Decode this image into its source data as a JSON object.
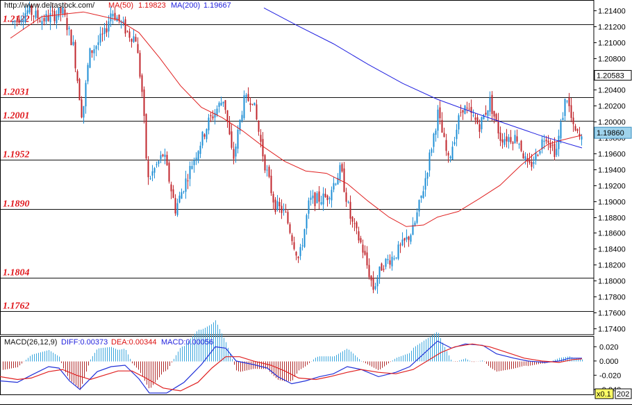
{
  "header": {
    "source": "http://www.deltastock.com/",
    "ma50_label": "MA(50)",
    "ma50_value": "1.19823",
    "ma200_label": "MA(200)",
    "ma200_value": "1.19667"
  },
  "macd_header": {
    "title": "MACD(26,12,9)",
    "diff": "DIFF:0.00373",
    "dea": "DEA:0.00344",
    "macd": "MACD:0.00056"
  },
  "colors": {
    "up": "#1f8fd6",
    "down": "#c0262c",
    "ma50": "#e02020",
    "ma200": "#2020e0",
    "level_text": "#e0191e",
    "price_box": "#9fd3ec"
  },
  "chart_data": [
    {
      "type": "candlestick",
      "yaxis": {
        "ticks": [
          "1.21400",
          "1.21200",
          "1.21000",
          "1.20800",
          "1.20600",
          "1.20400",
          "1.20200",
          "1.20000",
          "1.19800",
          "1.19600",
          "1.19400",
          "1.19200",
          "1.19000",
          "1.18800",
          "1.18600",
          "1.18400",
          "1.18200",
          "1.18000",
          "1.17800",
          "1.17600",
          "1.17400"
        ],
        "range": [
          1.1732,
          1.2153
        ]
      },
      "levels": [
        "1.2122",
        "1.2031",
        "1.2001",
        "1.1952",
        "1.1890",
        "1.1804",
        "1.1762"
      ],
      "current_price": "1.19860",
      "marker_price": "1.20583",
      "ma50_points": [
        [
          15,
          1.2105
        ],
        [
          60,
          1.2132
        ],
        [
          120,
          1.2138
        ],
        [
          170,
          1.2128
        ],
        [
          200,
          1.2112
        ],
        [
          230,
          1.208
        ],
        [
          260,
          1.2045
        ],
        [
          290,
          1.2018
        ],
        [
          320,
          1.2005
        ],
        [
          350,
          1.1988
        ],
        [
          380,
          1.1968
        ],
        [
          410,
          1.195
        ],
        [
          440,
          1.1938
        ],
        [
          470,
          1.1935
        ],
        [
          500,
          1.1922
        ],
        [
          530,
          1.19
        ],
        [
          560,
          1.188
        ],
        [
          585,
          1.1868
        ],
        [
          610,
          1.187
        ],
        [
          630,
          1.188
        ],
        [
          660,
          1.1887
        ],
        [
          690,
          1.1903
        ],
        [
          720,
          1.192
        ],
        [
          750,
          1.1945
        ],
        [
          770,
          1.196
        ],
        [
          790,
          1.1972
        ],
        [
          810,
          1.1977
        ],
        [
          838,
          1.1983
        ]
      ],
      "ma200_points": [
        [
          380,
          1.2143
        ],
        [
          430,
          1.212
        ],
        [
          480,
          1.2098
        ],
        [
          530,
          1.2072
        ],
        [
          580,
          1.2048
        ],
        [
          630,
          1.2028
        ],
        [
          680,
          1.2012
        ],
        [
          730,
          1.1997
        ],
        [
          780,
          1.1982
        ],
        [
          838,
          1.1967
        ]
      ],
      "price_path": [
        [
          18,
          1.2125
        ],
        [
          40,
          1.214
        ],
        [
          60,
          1.2128
        ],
        [
          90,
          1.2138
        ],
        [
          105,
          1.2095
        ],
        [
          118,
          1.2005
        ],
        [
          128,
          1.2085
        ],
        [
          150,
          1.211
        ],
        [
          160,
          1.214
        ],
        [
          185,
          1.211
        ],
        [
          195,
          1.2105
        ],
        [
          205,
          1.203
        ],
        [
          212,
          1.1925
        ],
        [
          235,
          1.196
        ],
        [
          252,
          1.189
        ],
        [
          275,
          1.1945
        ],
        [
          300,
          1.2
        ],
        [
          322,
          1.203
        ],
        [
          335,
          1.195
        ],
        [
          350,
          1.2025
        ],
        [
          363,
          1.203
        ],
        [
          380,
          1.195
        ],
        [
          395,
          1.1895
        ],
        [
          410,
          1.1885
        ],
        [
          430,
          1.1825
        ],
        [
          445,
          1.19
        ],
        [
          470,
          1.1905
        ],
        [
          490,
          1.194
        ],
        [
          505,
          1.1875
        ],
        [
          520,
          1.1845
        ],
        [
          537,
          1.179
        ],
        [
          550,
          1.182
        ],
        [
          565,
          1.183
        ],
        [
          580,
          1.1845
        ],
        [
          595,
          1.1865
        ],
        [
          610,
          1.192
        ],
        [
          630,
          1.201
        ],
        [
          645,
          1.195
        ],
        [
          665,
          1.202
        ],
        [
          690,
          1.1995
        ],
        [
          705,
          1.2025
        ],
        [
          720,
          1.198
        ],
        [
          745,
          1.198
        ],
        [
          760,
          1.194
        ],
        [
          770,
          1.1955
        ],
        [
          785,
          1.1985
        ],
        [
          800,
          1.196
        ],
        [
          815,
          1.2035
        ],
        [
          825,
          1.199
        ],
        [
          838,
          1.1975
        ]
      ]
    },
    {
      "type": "macd",
      "yaxis": {
        "ticks": [
          "0.020",
          "0.000",
          "-0.020",
          "-0.040"
        ],
        "range": [
          -0.047,
          0.035
        ]
      },
      "zoom_label": "x0.1",
      "extra_label": "202",
      "diff_points": [
        [
          0,
          -0.028
        ],
        [
          25,
          -0.03
        ],
        [
          45,
          -0.02
        ],
        [
          70,
          -0.008
        ],
        [
          85,
          -0.01
        ],
        [
          100,
          -0.028
        ],
        [
          115,
          -0.04
        ],
        [
          125,
          -0.03
        ],
        [
          140,
          -0.015
        ],
        [
          160,
          -0.008
        ],
        [
          180,
          -0.006
        ],
        [
          200,
          -0.025
        ],
        [
          215,
          -0.045
        ],
        [
          240,
          -0.045
        ],
        [
          265,
          -0.03
        ],
        [
          290,
          -0.005
        ],
        [
          310,
          0.02
        ],
        [
          325,
          0.018
        ],
        [
          340,
          0.0
        ],
        [
          365,
          -0.005
        ],
        [
          385,
          -0.01
        ],
        [
          400,
          -0.022
        ],
        [
          420,
          -0.032
        ],
        [
          440,
          -0.028
        ],
        [
          460,
          -0.022
        ],
        [
          480,
          -0.018
        ],
        [
          500,
          -0.008
        ],
        [
          520,
          -0.012
        ],
        [
          545,
          -0.022
        ],
        [
          570,
          -0.016
        ],
        [
          590,
          -0.008
        ],
        [
          610,
          0.01
        ],
        [
          630,
          0.028
        ],
        [
          650,
          0.018
        ],
        [
          670,
          0.024
        ],
        [
          695,
          0.022
        ],
        [
          715,
          0.01
        ],
        [
          740,
          0.004
        ],
        [
          760,
          0.0
        ],
        [
          785,
          -0.002
        ],
        [
          805,
          0.0
        ],
        [
          820,
          0.004
        ],
        [
          838,
          0.004
        ]
      ],
      "dea_points": [
        [
          0,
          -0.022
        ],
        [
          25,
          -0.026
        ],
        [
          45,
          -0.024
        ],
        [
          70,
          -0.015
        ],
        [
          90,
          -0.012
        ],
        [
          110,
          -0.02
        ],
        [
          130,
          -0.026
        ],
        [
          150,
          -0.02
        ],
        [
          170,
          -0.014
        ],
        [
          190,
          -0.014
        ],
        [
          210,
          -0.024
        ],
        [
          235,
          -0.038
        ],
        [
          260,
          -0.042
        ],
        [
          285,
          -0.03
        ],
        [
          305,
          -0.01
        ],
        [
          325,
          0.006
        ],
        [
          345,
          0.006
        ],
        [
          365,
          0.0
        ],
        [
          390,
          -0.006
        ],
        [
          410,
          -0.014
        ],
        [
          430,
          -0.024
        ],
        [
          455,
          -0.026
        ],
        [
          475,
          -0.022
        ],
        [
          500,
          -0.016
        ],
        [
          520,
          -0.012
        ],
        [
          545,
          -0.016
        ],
        [
          570,
          -0.018
        ],
        [
          595,
          -0.012
        ],
        [
          615,
          0.0
        ],
        [
          635,
          0.012
        ],
        [
          655,
          0.02
        ],
        [
          680,
          0.024
        ],
        [
          705,
          0.02
        ],
        [
          730,
          0.012
        ],
        [
          755,
          0.004
        ],
        [
          780,
          0.0
        ],
        [
          805,
          -0.002
        ],
        [
          825,
          0.002
        ],
        [
          838,
          0.003
        ]
      ]
    }
  ]
}
